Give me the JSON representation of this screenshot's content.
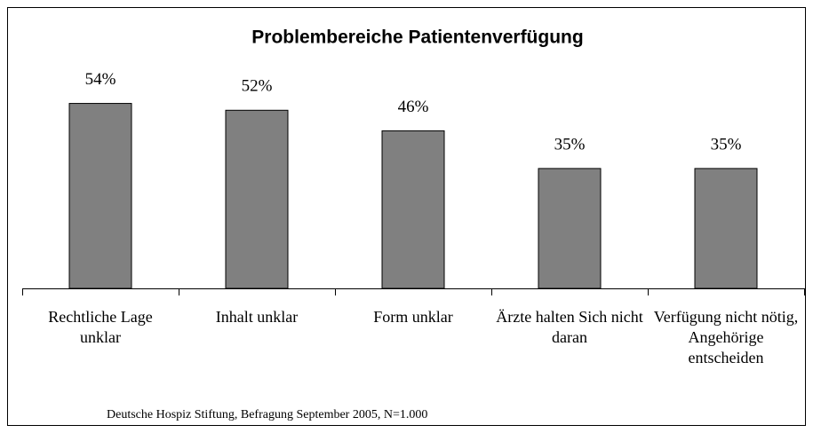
{
  "chart_data": {
    "type": "bar",
    "title": "Problembereiche Patientenverfügung",
    "categories": [
      "Rechtliche Lage unklar",
      "Inhalt unklar",
      "Form unklar",
      "Ärzte halten Sich nicht daran",
      "Verfügung nicht nötig, Angehörige entscheiden"
    ],
    "values": [
      54,
      52,
      46,
      35,
      35
    ],
    "value_labels": [
      "54%",
      "52%",
      "46%",
      "35%",
      "35%"
    ],
    "color": "#808080",
    "source": "Deutsche Hospiz Stiftung, Befragung September 2005, N=1.000"
  }
}
